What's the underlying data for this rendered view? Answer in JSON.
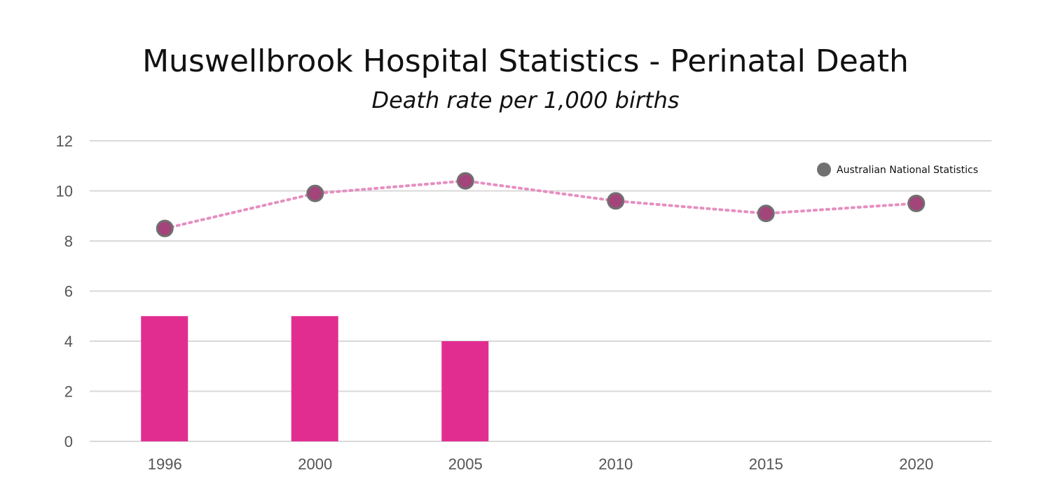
{
  "chart_data": {
    "type": "bar",
    "title": "Muswellbrook Hospital Statistics - Perinatal Death",
    "subtitle": "Death rate per 1,000 births",
    "categories": [
      "1996",
      "2000",
      "2005",
      "2010",
      "2015",
      "2020"
    ],
    "series": [
      {
        "type": "bar",
        "values": [
          5,
          5,
          4,
          null,
          null,
          null
        ],
        "color": "#e22d90"
      },
      {
        "type": "line",
        "name": "Australian National Statistics",
        "values": [
          8.5,
          9.9,
          10.4,
          9.6,
          9.1,
          9.5
        ],
        "color": "#e68fc0",
        "marker_fill": "#a3457a",
        "marker_stroke": "#707070",
        "line_style": "dotted"
      }
    ],
    "ylim": [
      0,
      12
    ],
    "yticks": [
      "0",
      "2",
      "4",
      "6",
      "8",
      "10",
      "12"
    ],
    "grid": true,
    "legend_position": "top-right"
  }
}
